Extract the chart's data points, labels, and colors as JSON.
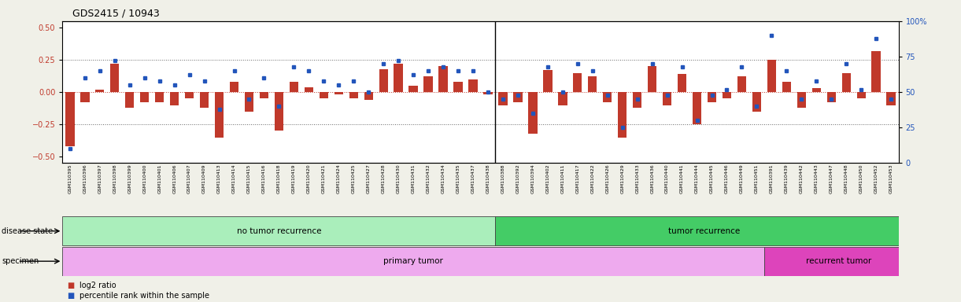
{
  "title": "GDS2415 / 10943",
  "samples": [
    "GSM110395",
    "GSM110396",
    "GSM110397",
    "GSM110398",
    "GSM110399",
    "GSM110400",
    "GSM110401",
    "GSM110406",
    "GSM110407",
    "GSM110409",
    "GSM110413",
    "GSM110414",
    "GSM110415",
    "GSM110416",
    "GSM110418",
    "GSM110419",
    "GSM110420",
    "GSM110421",
    "GSM110424",
    "GSM110425",
    "GSM110427",
    "GSM110428",
    "GSM110430",
    "GSM110431",
    "GSM110432",
    "GSM110434",
    "GSM110435",
    "GSM110437",
    "GSM110438",
    "GSM110388",
    "GSM110392",
    "GSM110394",
    "GSM110402",
    "GSM110411",
    "GSM110417",
    "GSM110422",
    "GSM110426",
    "GSM110429",
    "GSM110433",
    "GSM110436",
    "GSM110440",
    "GSM110441",
    "GSM110444",
    "GSM110445",
    "GSM110446",
    "GSM110449",
    "GSM110451",
    "GSM110391",
    "GSM110439",
    "GSM110442",
    "GSM110443",
    "GSM110447",
    "GSM110448",
    "GSM110450",
    "GSM110452",
    "GSM110453"
  ],
  "log2_ratio": [
    -0.42,
    -0.08,
    0.02,
    0.22,
    -0.12,
    -0.08,
    -0.08,
    -0.1,
    -0.05,
    -0.12,
    -0.35,
    0.08,
    -0.15,
    -0.05,
    -0.3,
    0.08,
    0.04,
    -0.05,
    -0.02,
    -0.05,
    -0.06,
    0.18,
    0.22,
    0.05,
    0.12,
    0.2,
    0.08,
    0.1,
    -0.02,
    -0.1,
    -0.08,
    -0.32,
    0.17,
    -0.1,
    0.15,
    0.12,
    -0.08,
    -0.35,
    -0.12,
    0.2,
    -0.1,
    0.14,
    -0.25,
    -0.08,
    -0.05,
    0.12,
    -0.15,
    0.25,
    0.08,
    -0.12,
    0.03,
    -0.08,
    0.15,
    -0.05,
    0.32,
    -0.1
  ],
  "percentile": [
    10,
    60,
    65,
    72,
    55,
    60,
    58,
    55,
    62,
    58,
    38,
    65,
    45,
    60,
    40,
    68,
    65,
    58,
    55,
    58,
    50,
    70,
    72,
    62,
    65,
    68,
    65,
    65,
    50,
    45,
    48,
    35,
    68,
    50,
    70,
    65,
    48,
    25,
    45,
    70,
    48,
    68,
    30,
    48,
    52,
    68,
    40,
    90,
    65,
    45,
    58,
    45,
    70,
    52,
    88,
    45
  ],
  "no_recurrence_count": 29,
  "primary_tumor_count": 47,
  "ylim": [
    -0.55,
    0.55
  ],
  "yticks_left": [
    -0.5,
    -0.25,
    0,
    0.25,
    0.5
  ],
  "yticks_right": [
    0,
    25,
    50,
    75,
    100
  ],
  "bar_color": "#C0392B",
  "dot_color": "#2255BB",
  "bg_color": "#F0F0E8",
  "plot_bg": "#FFFFFF",
  "light_green": "#AAEEBB",
  "dark_green": "#44CC66",
  "pink": "#EEAAEE",
  "magenta": "#DD44BB",
  "separator_color": "#000000"
}
